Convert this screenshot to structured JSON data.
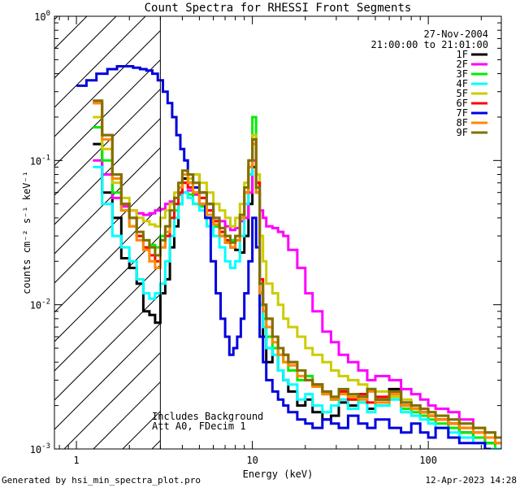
{
  "chart_data": {
    "type": "line",
    "title": "Count Spectra for RHESSI Front Segments",
    "xlabel": "Energy (keV)",
    "ylabel": "counts cm⁻² s⁻¹ keV⁻¹",
    "x_scale": "log",
    "y_scale": "log",
    "xlim": [
      0.75,
      260
    ],
    "ylim": [
      0.001,
      1.0
    ],
    "x_ticks": [
      {
        "value": 1,
        "label": "1"
      },
      {
        "value": 10,
        "label": "10"
      },
      {
        "value": 100,
        "label": "100"
      }
    ],
    "y_ticks": [
      {
        "value": 1.0,
        "base": "10",
        "exp": "0"
      },
      {
        "value": 0.1,
        "base": "10",
        "exp": "-1"
      },
      {
        "value": 0.01,
        "base": "10",
        "exp": "-2"
      },
      {
        "value": 0.001,
        "base": "10",
        "exp": "-3"
      }
    ],
    "excluded_region": {
      "from": 0.75,
      "to": 3.0,
      "fill": "hatched"
    },
    "date": "27-Nov-2004",
    "time_range": "21:00:00 to 21:01:00",
    "notes": [
      "Includes Background",
      "Att A0, FDecim 1"
    ],
    "series": [
      {
        "name": "1F",
        "color": "#000000",
        "x": [
          1.24,
          1.4,
          1.6,
          1.8,
          2.0,
          2.2,
          2.4,
          2.6,
          2.8,
          3.0,
          3.2,
          3.4,
          3.6,
          3.8,
          4.0,
          4.3,
          4.6,
          5.0,
          5.5,
          6.0,
          6.5,
          7.0,
          7.5,
          8.0,
          8.5,
          9.0,
          9.5,
          10.0,
          10.5,
          11.0,
          11.5,
          12.0,
          13.0,
          14.0,
          15.0,
          16.0,
          18.0,
          20.0,
          22.0,
          25.0,
          28.0,
          31.0,
          35.0,
          40.0,
          45.0,
          50.0,
          60.0,
          70.0,
          80.0,
          90.0,
          100.0,
          110.0,
          130.0,
          150.0,
          180.0,
          210.0,
          240.0
        ],
        "y": [
          0.13,
          0.06,
          0.04,
          0.021,
          0.018,
          0.014,
          0.009,
          0.0085,
          0.0075,
          0.012,
          0.015,
          0.025,
          0.035,
          0.05,
          0.075,
          0.07,
          0.08,
          0.06,
          0.05,
          0.035,
          0.03,
          0.027,
          0.025,
          0.024,
          0.023,
          0.03,
          0.05,
          0.09,
          0.06,
          0.01,
          0.006,
          0.004,
          0.005,
          0.0035,
          0.003,
          0.0025,
          0.002,
          0.0022,
          0.0018,
          0.0016,
          0.0017,
          0.0021,
          0.002,
          0.0024,
          0.0019,
          0.0022,
          0.0026,
          0.0021,
          0.002,
          0.0018,
          0.0017,
          0.0016,
          0.0015,
          0.0013,
          0.0012,
          0.0011,
          0.001
        ]
      },
      {
        "name": "2F",
        "color": "#ff00ff",
        "x": [
          1.24,
          1.4,
          1.6,
          1.8,
          2.0,
          2.2,
          2.4,
          2.6,
          2.8,
          3.0,
          3.2,
          3.4,
          3.6,
          3.8,
          4.0,
          4.3,
          4.6,
          5.0,
          5.5,
          6.0,
          6.5,
          7.0,
          7.5,
          8.0,
          8.5,
          9.0,
          9.5,
          10.0,
          10.5,
          11.0,
          11.5,
          12.0,
          13.0,
          14.0,
          15.0,
          16.0,
          18.0,
          20.0,
          22.0,
          25.0,
          28.0,
          31.0,
          35.0,
          40.0,
          45.0,
          50.0,
          60.0,
          70.0,
          80.0,
          90.0,
          100.0,
          110.0,
          130.0,
          150.0,
          180.0,
          210.0,
          240.0
        ],
        "y": [
          0.1,
          0.08,
          0.055,
          0.048,
          0.045,
          0.043,
          0.042,
          0.043,
          0.045,
          0.046,
          0.05,
          0.052,
          0.055,
          0.058,
          0.06,
          0.062,
          0.058,
          0.055,
          0.045,
          0.04,
          0.038,
          0.035,
          0.033,
          0.034,
          0.038,
          0.04,
          0.06,
          0.1,
          0.07,
          0.045,
          0.04,
          0.035,
          0.034,
          0.032,
          0.03,
          0.024,
          0.018,
          0.012,
          0.009,
          0.0065,
          0.0055,
          0.0045,
          0.004,
          0.0035,
          0.003,
          0.0032,
          0.003,
          0.0026,
          0.0024,
          0.0022,
          0.002,
          0.0019,
          0.0018,
          0.0016,
          0.0014,
          0.0013,
          0.0012
        ]
      },
      {
        "name": "3F",
        "color": "#00ee00",
        "x": [
          1.24,
          1.4,
          1.6,
          1.8,
          2.0,
          2.2,
          2.4,
          2.6,
          2.8,
          3.0,
          3.2,
          3.4,
          3.6,
          3.8,
          4.0,
          4.3,
          4.6,
          5.0,
          5.5,
          6.0,
          6.5,
          7.0,
          7.5,
          8.0,
          8.5,
          9.0,
          9.5,
          10.0,
          10.5,
          11.0,
          11.5,
          12.0,
          13.0,
          14.0,
          15.0,
          16.0,
          18.0,
          20.0,
          22.0,
          25.0,
          28.0,
          31.0,
          35.0,
          40.0,
          45.0,
          50.0,
          60.0,
          70.0,
          80.0,
          90.0,
          100.0,
          110.0,
          130.0,
          150.0,
          180.0,
          210.0,
          240.0
        ],
        "y": [
          0.17,
          0.1,
          0.06,
          0.045,
          0.035,
          0.03,
          0.028,
          0.026,
          0.025,
          0.03,
          0.035,
          0.04,
          0.045,
          0.05,
          0.06,
          0.058,
          0.05,
          0.048,
          0.04,
          0.035,
          0.032,
          0.03,
          0.028,
          0.03,
          0.04,
          0.06,
          0.09,
          0.2,
          0.08,
          0.012,
          0.008,
          0.006,
          0.005,
          0.0045,
          0.004,
          0.0035,
          0.003,
          0.0032,
          0.0028,
          0.0024,
          0.0022,
          0.0025,
          0.0022,
          0.0021,
          0.0026,
          0.002,
          0.0023,
          0.0019,
          0.0018,
          0.0017,
          0.0016,
          0.0015,
          0.0014,
          0.0013,
          0.0012,
          0.0011,
          0.001
        ]
      },
      {
        "name": "4F",
        "color": "#00ffff",
        "x": [
          1.24,
          1.4,
          1.6,
          1.8,
          2.0,
          2.2,
          2.4,
          2.6,
          2.8,
          3.0,
          3.2,
          3.4,
          3.6,
          3.8,
          4.0,
          4.3,
          4.6,
          5.0,
          5.5,
          6.0,
          6.5,
          7.0,
          7.5,
          8.0,
          8.5,
          9.0,
          9.5,
          10.0,
          10.5,
          11.0,
          11.5,
          12.0,
          13.0,
          14.0,
          15.0,
          16.0,
          18.0,
          20.0,
          22.0,
          25.0,
          28.0,
          31.0,
          35.0,
          40.0,
          45.0,
          50.0,
          60.0,
          70.0,
          80.0,
          90.0,
          100.0,
          110.0,
          130.0,
          150.0,
          180.0,
          210.0,
          240.0
        ],
        "y": [
          0.09,
          0.05,
          0.03,
          0.025,
          0.02,
          0.015,
          0.012,
          0.011,
          0.012,
          0.014,
          0.02,
          0.03,
          0.04,
          0.05,
          0.06,
          0.055,
          0.05,
          0.045,
          0.035,
          0.03,
          0.025,
          0.02,
          0.018,
          0.02,
          0.03,
          0.05,
          0.08,
          0.15,
          0.06,
          0.01,
          0.007,
          0.005,
          0.0045,
          0.0035,
          0.003,
          0.0028,
          0.0022,
          0.0024,
          0.002,
          0.0018,
          0.002,
          0.0022,
          0.0019,
          0.0021,
          0.0018,
          0.002,
          0.0022,
          0.0018,
          0.0017,
          0.0016,
          0.0015,
          0.0014,
          0.0013,
          0.0012,
          0.0011,
          0.001,
          0.001
        ]
      },
      {
        "name": "5F",
        "color": "#cccc00",
        "x": [
          1.24,
          1.4,
          1.6,
          1.8,
          2.0,
          2.2,
          2.4,
          2.6,
          2.8,
          3.0,
          3.2,
          3.4,
          3.6,
          3.8,
          4.0,
          4.3,
          4.6,
          5.0,
          5.5,
          6.0,
          6.5,
          7.0,
          7.5,
          8.0,
          8.5,
          9.0,
          9.5,
          10.0,
          10.5,
          11.0,
          11.5,
          12.0,
          13.0,
          14.0,
          15.0,
          16.0,
          18.0,
          20.0,
          22.0,
          25.0,
          28.0,
          31.0,
          35.0,
          40.0,
          45.0,
          50.0,
          60.0,
          70.0,
          80.0,
          90.0,
          100.0,
          110.0,
          130.0,
          150.0,
          180.0,
          210.0,
          240.0
        ],
        "y": [
          0.2,
          0.12,
          0.07,
          0.055,
          0.045,
          0.04,
          0.038,
          0.036,
          0.035,
          0.04,
          0.045,
          0.05,
          0.06,
          0.065,
          0.07,
          0.075,
          0.08,
          0.07,
          0.06,
          0.05,
          0.045,
          0.04,
          0.035,
          0.04,
          0.05,
          0.07,
          0.1,
          0.15,
          0.08,
          0.03,
          0.02,
          0.014,
          0.012,
          0.01,
          0.008,
          0.007,
          0.006,
          0.005,
          0.0045,
          0.004,
          0.0035,
          0.0032,
          0.003,
          0.0028,
          0.0026,
          0.0025,
          0.0023,
          0.0022,
          0.002,
          0.0019,
          0.0018,
          0.0017,
          0.0016,
          0.0015,
          0.0014,
          0.0013,
          0.0012
        ]
      },
      {
        "name": "6F",
        "color": "#ff0000",
        "x": [
          1.24,
          1.4,
          1.6,
          1.8,
          2.0,
          2.2,
          2.4,
          2.6,
          2.8,
          3.0,
          3.2,
          3.4,
          3.6,
          3.8,
          4.0,
          4.3,
          4.6,
          5.0,
          5.5,
          6.0,
          6.5,
          7.0,
          7.5,
          8.0,
          8.5,
          9.0,
          9.5,
          10.0,
          10.5,
          11.0,
          11.5,
          12.0,
          13.0,
          14.0,
          15.0,
          16.0,
          18.0,
          20.0,
          22.0,
          25.0,
          28.0,
          31.0,
          35.0,
          40.0,
          45.0,
          50.0,
          60.0,
          70.0,
          80.0,
          90.0,
          100.0,
          110.0,
          130.0,
          150.0,
          180.0,
          210.0,
          240.0
        ],
        "y": [
          0.25,
          0.15,
          0.08,
          0.05,
          0.04,
          0.03,
          0.025,
          0.022,
          0.02,
          0.025,
          0.03,
          0.04,
          0.05,
          0.06,
          0.07,
          0.065,
          0.06,
          0.055,
          0.045,
          0.038,
          0.032,
          0.028,
          0.025,
          0.028,
          0.04,
          0.06,
          0.09,
          0.14,
          0.07,
          0.015,
          0.01,
          0.008,
          0.006,
          0.005,
          0.0045,
          0.004,
          0.0035,
          0.003,
          0.0028,
          0.0025,
          0.0023,
          0.0025,
          0.0022,
          0.0024,
          0.0021,
          0.0023,
          0.0025,
          0.002,
          0.0019,
          0.0018,
          0.0017,
          0.0016,
          0.0015,
          0.0014,
          0.0013,
          0.0012,
          0.0011
        ]
      },
      {
        "name": "7F",
        "color": "#0000dd",
        "x": [
          1.0,
          1.14,
          1.3,
          1.5,
          1.7,
          1.9,
          2.1,
          2.3,
          2.5,
          2.7,
          2.9,
          3.1,
          3.3,
          3.5,
          3.7,
          3.9,
          4.1,
          4.3,
          4.6,
          5.0,
          5.4,
          5.8,
          6.2,
          6.6,
          7.0,
          7.4,
          7.8,
          8.2,
          8.6,
          9.0,
          9.5,
          10.0,
          10.5,
          11.0,
          11.5,
          12.0,
          13.0,
          14.0,
          15.0,
          16.0,
          18.0,
          20.0,
          22.0,
          25.0,
          28.0,
          31.0,
          35.0,
          40.0,
          45.0,
          50.0,
          60.0,
          70.0,
          80.0,
          90.0,
          100.0,
          110.0,
          130.0,
          150.0,
          180.0,
          210.0
        ],
        "y": [
          0.33,
          0.36,
          0.4,
          0.43,
          0.45,
          0.45,
          0.44,
          0.43,
          0.42,
          0.4,
          0.36,
          0.3,
          0.25,
          0.2,
          0.15,
          0.12,
          0.1,
          0.08,
          0.065,
          0.05,
          0.04,
          0.02,
          0.012,
          0.008,
          0.006,
          0.0045,
          0.005,
          0.006,
          0.008,
          0.012,
          0.02,
          0.04,
          0.025,
          0.006,
          0.004,
          0.003,
          0.0025,
          0.0022,
          0.002,
          0.0018,
          0.0016,
          0.0015,
          0.0014,
          0.0016,
          0.0015,
          0.0014,
          0.0017,
          0.0015,
          0.0014,
          0.0016,
          0.0014,
          0.0013,
          0.0015,
          0.0013,
          0.0012,
          0.0014,
          0.0012,
          0.0011,
          0.0011,
          0.001
        ]
      },
      {
        "name": "8F",
        "color": "#ff8800",
        "x": [
          1.24,
          1.4,
          1.6,
          1.8,
          2.0,
          2.2,
          2.4,
          2.6,
          2.8,
          3.0,
          3.2,
          3.4,
          3.6,
          3.8,
          4.0,
          4.3,
          4.6,
          5.0,
          5.5,
          6.0,
          6.5,
          7.0,
          7.5,
          8.0,
          8.5,
          9.0,
          9.5,
          10.0,
          10.5,
          11.0,
          11.5,
          12.0,
          13.0,
          14.0,
          15.0,
          16.0,
          18.0,
          20.0,
          22.0,
          25.0,
          28.0,
          31.0,
          35.0,
          40.0,
          45.0,
          50.0,
          60.0,
          70.0,
          80.0,
          90.0,
          100.0,
          110.0,
          130.0,
          150.0,
          180.0,
          210.0,
          240.0
        ],
        "y": [
          0.25,
          0.14,
          0.075,
          0.045,
          0.035,
          0.028,
          0.024,
          0.02,
          0.018,
          0.025,
          0.032,
          0.045,
          0.055,
          0.065,
          0.08,
          0.07,
          0.06,
          0.05,
          0.042,
          0.036,
          0.03,
          0.027,
          0.025,
          0.028,
          0.04,
          0.06,
          0.09,
          0.13,
          0.06,
          0.012,
          0.009,
          0.007,
          0.0055,
          0.0045,
          0.004,
          0.0038,
          0.0032,
          0.003,
          0.0027,
          0.0024,
          0.0022,
          0.0024,
          0.0023,
          0.0022,
          0.0025,
          0.0021,
          0.0024,
          0.002,
          0.0019,
          0.0018,
          0.0017,
          0.0016,
          0.0015,
          0.0014,
          0.0013,
          0.0012,
          0.0011
        ]
      },
      {
        "name": "9F",
        "color": "#807000",
        "x": [
          1.24,
          1.4,
          1.6,
          1.8,
          2.0,
          2.2,
          2.4,
          2.6,
          2.8,
          3.0,
          3.2,
          3.4,
          3.6,
          3.8,
          4.0,
          4.3,
          4.6,
          5.0,
          5.5,
          6.0,
          6.5,
          7.0,
          7.5,
          8.0,
          8.5,
          9.0,
          9.5,
          10.0,
          10.5,
          11.0,
          11.5,
          12.0,
          13.0,
          14.0,
          15.0,
          16.0,
          18.0,
          20.0,
          22.0,
          25.0,
          28.0,
          31.0,
          35.0,
          40.0,
          45.0,
          50.0,
          60.0,
          70.0,
          80.0,
          90.0,
          100.0,
          110.0,
          130.0,
          150.0,
          180.0,
          210.0,
          240.0
        ],
        "y": [
          0.26,
          0.15,
          0.08,
          0.05,
          0.04,
          0.032,
          0.028,
          0.025,
          0.022,
          0.028,
          0.035,
          0.045,
          0.055,
          0.07,
          0.085,
          0.08,
          0.07,
          0.06,
          0.05,
          0.04,
          0.034,
          0.03,
          0.027,
          0.03,
          0.042,
          0.065,
          0.1,
          0.14,
          0.065,
          0.014,
          0.01,
          0.008,
          0.006,
          0.005,
          0.0045,
          0.004,
          0.0035,
          0.003,
          0.0028,
          0.0025,
          0.0023,
          0.0026,
          0.0024,
          0.0023,
          0.0026,
          0.0022,
          0.0025,
          0.0021,
          0.002,
          0.0019,
          0.0018,
          0.0017,
          0.0016,
          0.0015,
          0.0014,
          0.0013,
          0.0012
        ]
      }
    ]
  },
  "footer": {
    "generated_by": "Generated by hsi_min_spectra_plot.pro",
    "timestamp": "12-Apr-2023 14:28"
  }
}
